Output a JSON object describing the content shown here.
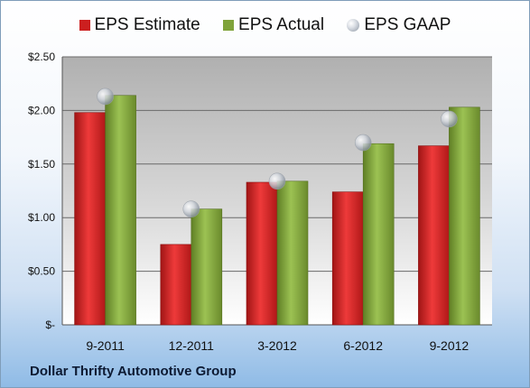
{
  "footer_text": "Dollar Thrifty Automotive Group",
  "chart_data": {
    "type": "bar",
    "categories": [
      "9-2011",
      "12-2011",
      "3-2012",
      "6-2012",
      "9-2012"
    ],
    "series": [
      {
        "name": "EPS Estimate",
        "kind": "bar",
        "color": "#cc1f1f",
        "values": [
          1.98,
          0.75,
          1.33,
          1.24,
          1.67
        ]
      },
      {
        "name": "EPS Actual",
        "kind": "bar",
        "color": "#7fa33a",
        "values": [
          2.14,
          1.08,
          1.34,
          1.69,
          2.03
        ]
      },
      {
        "name": "EPS GAAP",
        "kind": "marker",
        "color": "#b8bec6",
        "values": [
          2.13,
          1.08,
          1.34,
          1.7,
          1.92
        ]
      }
    ],
    "ylim": [
      0,
      2.5
    ],
    "yticks": [
      0,
      0.5,
      1.0,
      1.5,
      2.0,
      2.5
    ],
    "ytick_labels": [
      "$-",
      "$0.50",
      "$1.00",
      "$1.50",
      "$2.00",
      "$2.50"
    ],
    "grid": true,
    "legend_position": "top"
  }
}
